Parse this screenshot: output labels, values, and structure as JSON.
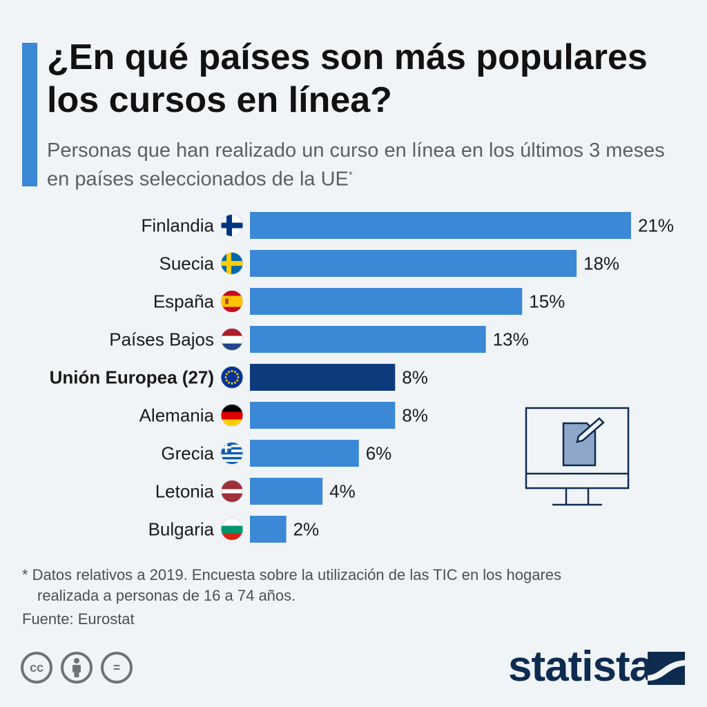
{
  "header": {
    "title": "¿En qué países son más populares los cursos en línea?",
    "subtitle": "Personas que han realizado un curso en línea en los últimos 3 meses en países seleccionados de la UE",
    "subtitle_marker": "*"
  },
  "chart_data": {
    "type": "bar",
    "orientation": "horizontal",
    "categories": [
      "Finlandia",
      "Suecia",
      "España",
      "Países Bajos",
      "Unión Europea (27)",
      "Alemania",
      "Grecia",
      "Letonia",
      "Bulgaria"
    ],
    "values": [
      21,
      18,
      15,
      13,
      8,
      8,
      6,
      4,
      2
    ],
    "value_labels": [
      "21%",
      "18%",
      "15%",
      "13%",
      "8%",
      "8%",
      "6%",
      "4%",
      "2%"
    ],
    "flags": [
      "finland-flag",
      "sweden-flag",
      "spain-flag",
      "netherlands-flag",
      "eu-flag",
      "germany-flag",
      "greece-flag",
      "latvia-flag",
      "bulgaria-flag"
    ],
    "highlight_index": 4,
    "xlim": [
      0,
      21
    ],
    "grid": false,
    "colors": {
      "bar": "#3b88d6",
      "highlight": "#0d3b7d"
    }
  },
  "illustration": {
    "icon": "computer-monitor-document-pencil-icon"
  },
  "footer": {
    "note_line1": "* Datos relativos a 2019. Encuesta sobre la utilización de las TIC en los hogares",
    "note_line2": "realizada a personas de 16 a 74 años.",
    "source": "Fuente: Eurostat",
    "license_icons": [
      "cc-icon",
      "by-icon",
      "nd-icon"
    ],
    "license_glyphs": [
      "cc",
      "",
      "="
    ],
    "brand": "statista"
  }
}
